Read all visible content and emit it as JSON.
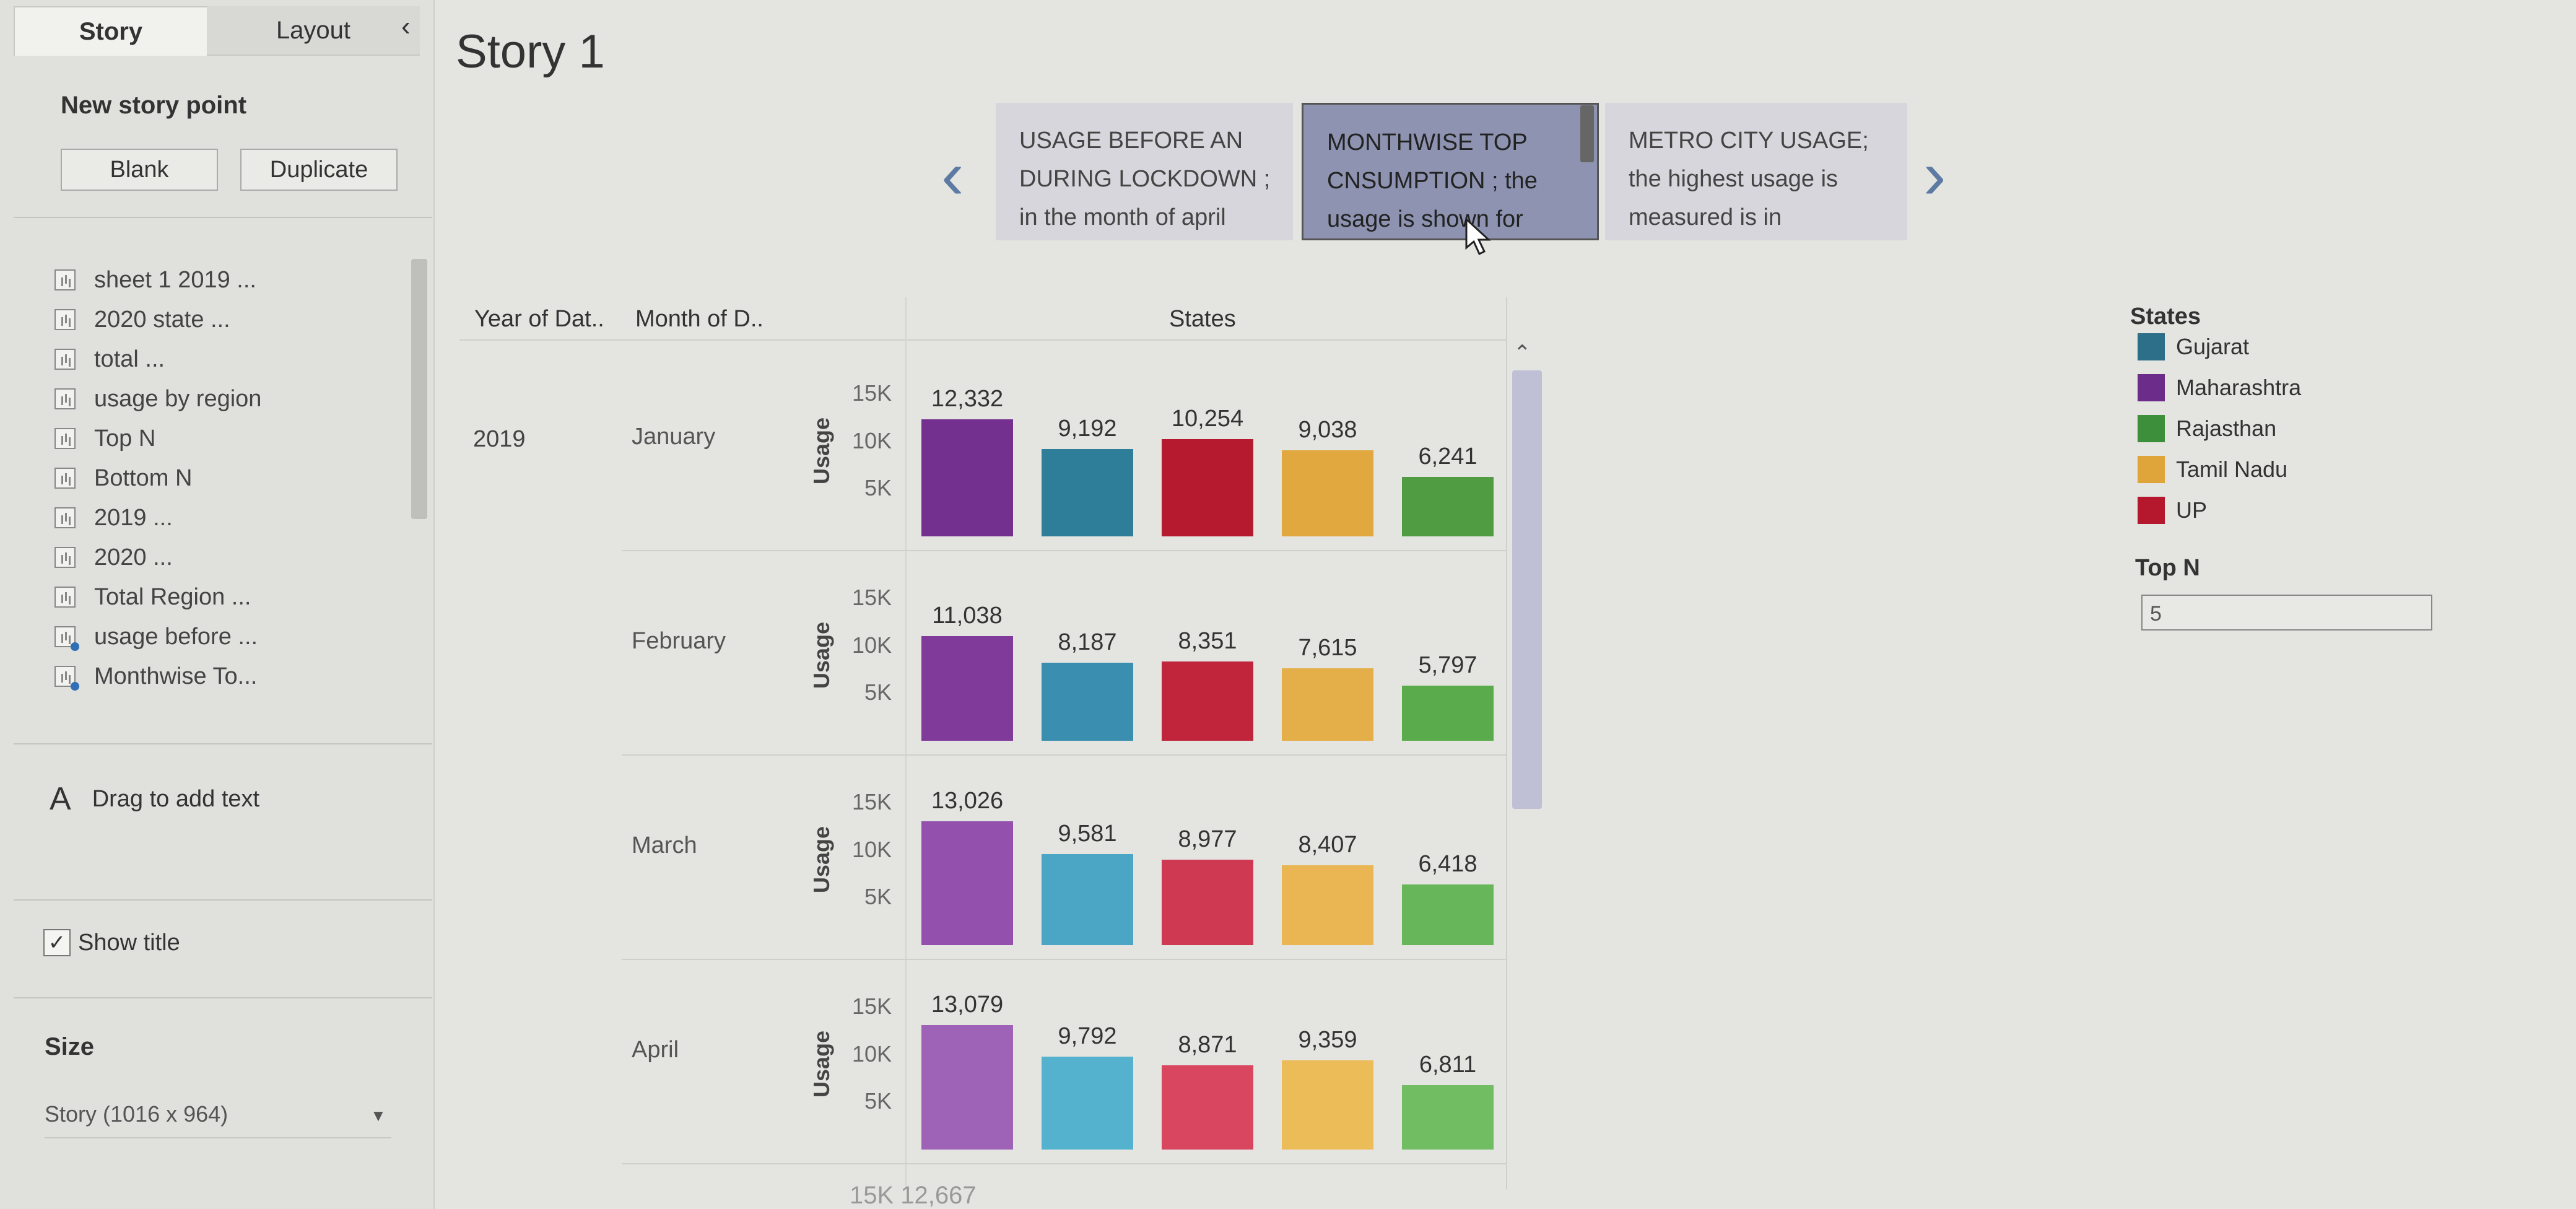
{
  "sidebar": {
    "tabs": [
      "Story",
      "Layout"
    ],
    "collapse_icon": "‹",
    "new_story_point": "New story point",
    "blank": "Blank",
    "duplicate": "Duplicate",
    "sheets": [
      {
        "label": "sheet 1 2019 ...",
        "story": false
      },
      {
        "label": "2020 state ...",
        "story": false
      },
      {
        "label": "total ...",
        "story": false
      },
      {
        "label": "usage by region",
        "story": false
      },
      {
        "label": "Top N",
        "story": false
      },
      {
        "label": "Bottom N",
        "story": false
      },
      {
        "label": "2019 ...",
        "story": false
      },
      {
        "label": "2020 ...",
        "story": false
      },
      {
        "label": "Total Region ...",
        "story": false
      },
      {
        "label": "usage before ...",
        "story": true
      },
      {
        "label": "Monthwise To...",
        "story": true
      }
    ],
    "drag_text": "Drag to add text",
    "show_title": "Show title",
    "size_label": "Size",
    "size_value": "Story (1016 x 964)"
  },
  "story": {
    "title": "Story 1",
    "points": [
      "USAGE BEFORE AN DURING LOCKDOWN ; in the month of april",
      "MONTHWISE TOP CNSUMPTION ; the usage is shown for",
      "METRO CITY USAGE; the highest usage is measured is in"
    ]
  },
  "worksheet": {
    "headers": {
      "year": "Year of Dat..",
      "month": "Month of D..",
      "states": "States"
    },
    "year": "2019",
    "y_axis_label": "Usage",
    "next_row_peek": "15K  12,667"
  },
  "legend": {
    "title": "States",
    "items": [
      {
        "name": "Gujarat",
        "color": "#2d6e89"
      },
      {
        "name": "Maharashtra",
        "color": "#6c2c8a"
      },
      {
        "name": "Rajasthan",
        "color": "#3d8f3c"
      },
      {
        "name": "Tamil Nadu",
        "color": "#e0a53a"
      },
      {
        "name": "UP",
        "color": "#b5182d"
      }
    ]
  },
  "filter": {
    "label": "Top N",
    "value": "5"
  },
  "chart_data": {
    "type": "bar",
    "y_label": "Usage",
    "ylim": [
      0,
      15000
    ],
    "ticks": [
      "15K",
      "10K",
      "5K"
    ],
    "rows": [
      {
        "month": "January",
        "bars": [
          {
            "value": 12332,
            "label": "12,332",
            "color": "#74308f"
          },
          {
            "value": 9192,
            "label": "9,192",
            "color": "#2f7e99"
          },
          {
            "value": 10254,
            "label": "10,254",
            "color": "#b51a2e"
          },
          {
            "value": 9038,
            "label": "9,038",
            "color": "#e0a83e"
          },
          {
            "value": 6241,
            "label": "6,241",
            "color": "#4f9c42"
          }
        ]
      },
      {
        "month": "February",
        "bars": [
          {
            "value": 11038,
            "label": "11,038",
            "color": "#803b9a"
          },
          {
            "value": 8187,
            "label": "8,187",
            "color": "#3a8eb0"
          },
          {
            "value": 8351,
            "label": "8,351",
            "color": "#c1253b"
          },
          {
            "value": 7615,
            "label": "7,615",
            "color": "#e4ae48"
          },
          {
            "value": 5797,
            "label": "5,797",
            "color": "#5aab4c"
          }
        ]
      },
      {
        "month": "March",
        "bars": [
          {
            "value": 13026,
            "label": "13,026",
            "color": "#9350ad"
          },
          {
            "value": 9581,
            "label": "9,581",
            "color": "#4aa6c4"
          },
          {
            "value": 8977,
            "label": "8,977",
            "color": "#cf3a52"
          },
          {
            "value": 8407,
            "label": "8,407",
            "color": "#e9b653"
          },
          {
            "value": 6418,
            "label": "6,418",
            "color": "#68b65a"
          }
        ]
      },
      {
        "month": "April",
        "bars": [
          {
            "value": 13079,
            "label": "13,079",
            "color": "#9e62b6"
          },
          {
            "value": 9792,
            "label": "9,792",
            "color": "#55b2cf"
          },
          {
            "value": 8871,
            "label": "8,871",
            "color": "#d94660"
          },
          {
            "value": 9359,
            "label": "9,359",
            "color": "#ecbc58"
          },
          {
            "value": 6811,
            "label": "6,811",
            "color": "#70bd62"
          }
        ]
      }
    ]
  }
}
